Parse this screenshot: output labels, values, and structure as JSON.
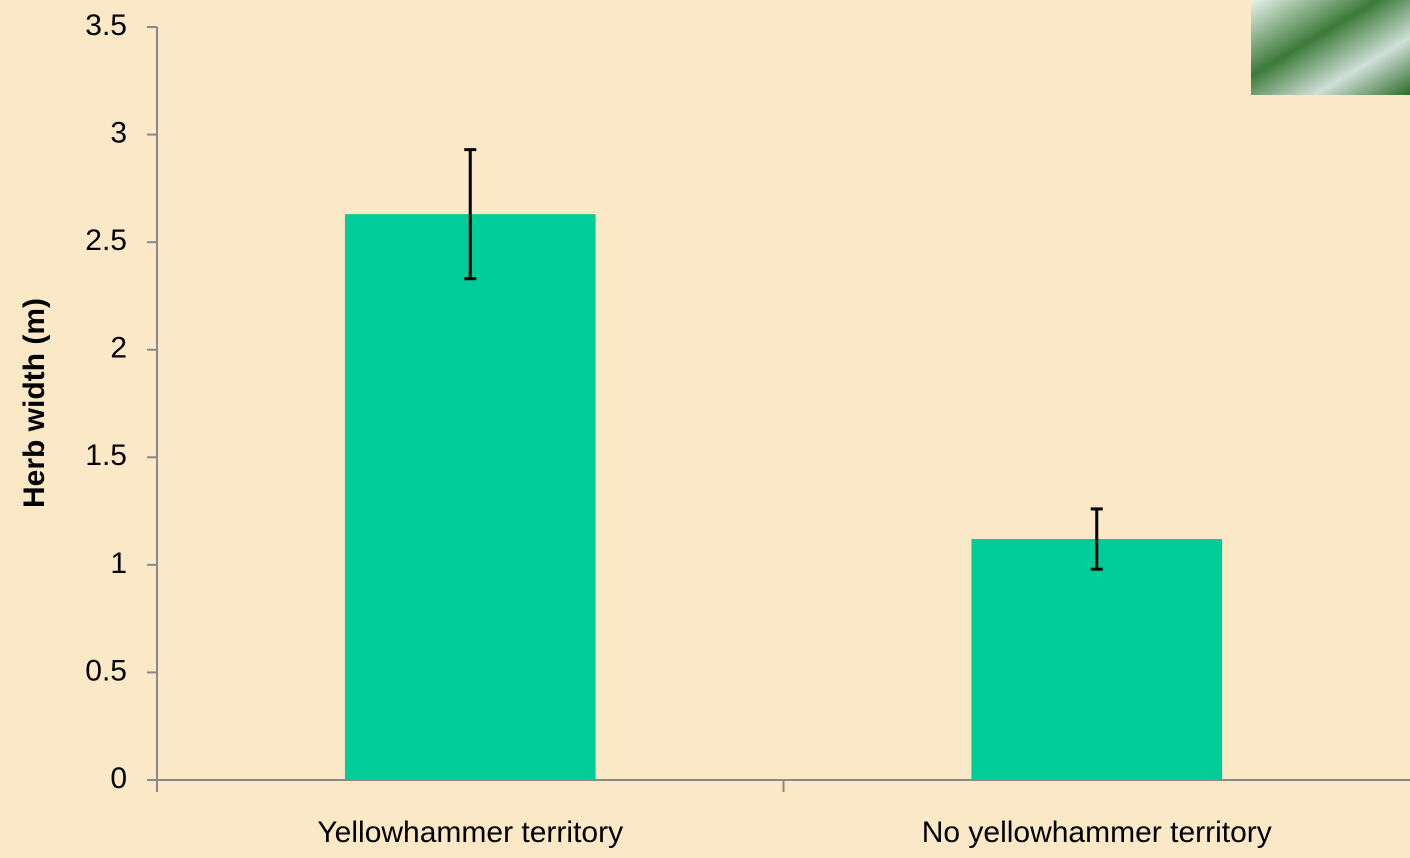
{
  "chart_data": {
    "type": "bar",
    "y_label": "Herb width (m)",
    "categories": [
      "Yellowhammer territory",
      "No yellowhammer territory"
    ],
    "values": [
      2.63,
      1.12
    ],
    "errors": [
      0.3,
      0.14
    ],
    "color": "#00cc99",
    "ylim": [
      0,
      3.5
    ],
    "yticks": [
      0,
      0.5,
      1,
      1.5,
      2,
      2.5,
      3,
      3.5
    ]
  }
}
